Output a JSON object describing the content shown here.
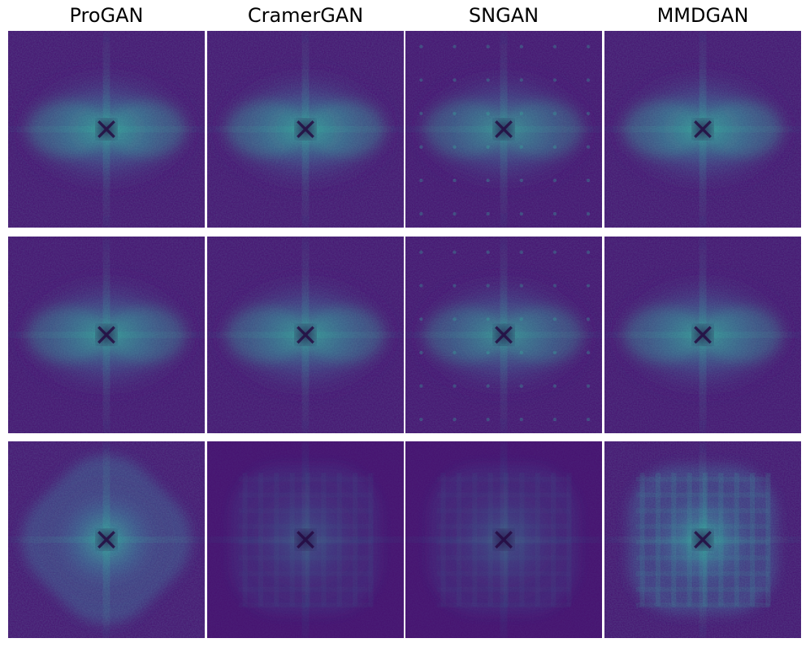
{
  "columns": [
    {
      "label": "ProGAN"
    },
    {
      "label": "CramerGAN"
    },
    {
      "label": "SNGAN"
    },
    {
      "label": "MMDGAN"
    }
  ],
  "rows": [
    {
      "variant": "cross-spectrum",
      "panels": [
        {
          "intensity": 0.85,
          "box": 0,
          "grid": 0
        },
        {
          "intensity": 0.85,
          "box": 0,
          "grid": 0
        },
        {
          "intensity": 0.75,
          "box": 0,
          "grid": 0.6
        },
        {
          "intensity": 0.85,
          "box": 0,
          "grid": 0
        }
      ]
    },
    {
      "variant": "cross-spectrum",
      "panels": [
        {
          "intensity": 0.8,
          "box": 0,
          "grid": 0
        },
        {
          "intensity": 0.8,
          "box": 0,
          "grid": 0
        },
        {
          "intensity": 0.75,
          "box": 0,
          "grid": 0.6
        },
        {
          "intensity": 0.8,
          "box": 0,
          "grid": 0
        }
      ]
    },
    {
      "variant": "blob-spectrum",
      "panels": [
        {
          "intensity": 0.9,
          "box": 0.6,
          "grid": 0
        },
        {
          "intensity": 0.35,
          "box": 0.5,
          "grid": 0.3
        },
        {
          "intensity": 0.35,
          "box": 0.5,
          "grid": 0.3
        },
        {
          "intensity": 0.85,
          "box": 0.7,
          "grid": 0.8
        }
      ]
    }
  ],
  "colors": {
    "background": "#46106f",
    "mid": "#3b5b8f",
    "bright": "#2fb29a",
    "dark_center": "#24073f"
  }
}
